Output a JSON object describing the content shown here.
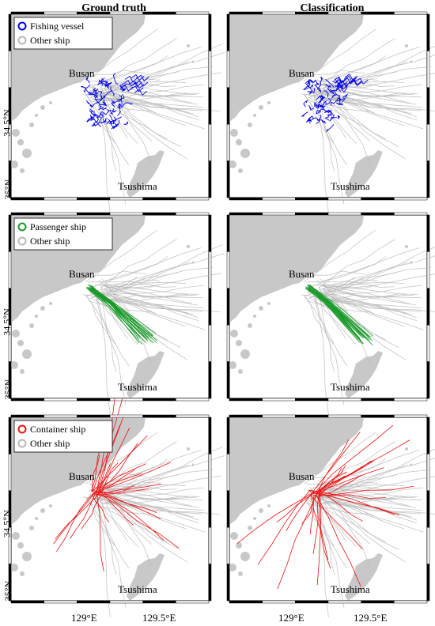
{
  "columns": [
    "Ground truth",
    "Classification"
  ],
  "lat_labels": [
    "34.5°N",
    "35°N"
  ],
  "lon_labels": [
    "129°E",
    "129.5°E"
  ],
  "place_labels": {
    "city": "Busan",
    "island": "Tsushima"
  },
  "other_label": "Other ship",
  "other_color": "#b8b8b8",
  "land_color": "#c8c8c8",
  "rows": [
    {
      "class": "Fishing vessel",
      "color": "#0000ee",
      "kind": "fishing"
    },
    {
      "class": "Passenger ship",
      "color": "#1a9a2a",
      "kind": "passenger"
    },
    {
      "class": "Container ship",
      "color": "#ee1111",
      "kind": "container"
    }
  ]
}
